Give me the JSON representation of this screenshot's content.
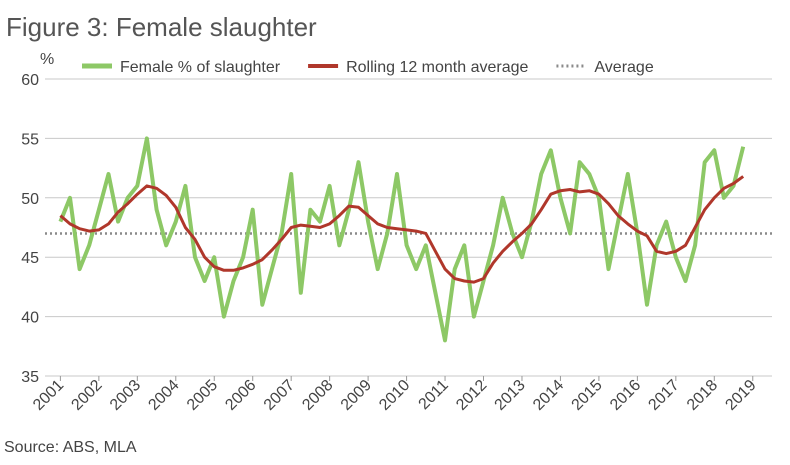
{
  "chart_data": {
    "type": "line",
    "title": "Figure 3: Female slaughter",
    "y_axis_label": "%",
    "source": "Source: ABS, MLA",
    "xlim": [
      2000.6,
      2019.5
    ],
    "ylim": [
      35,
      60
    ],
    "xticks": [
      2001,
      2002,
      2003,
      2004,
      2005,
      2006,
      2007,
      2008,
      2009,
      2010,
      2011,
      2012,
      2013,
      2014,
      2015,
      2016,
      2017,
      2018,
      2019
    ],
    "yticks": [
      35,
      40,
      45,
      50,
      55,
      60
    ],
    "grid": true,
    "legend": "top",
    "x": [
      2001,
      2001.25,
      2001.5,
      2001.75,
      2002,
      2002.25,
      2002.5,
      2002.75,
      2003,
      2003.25,
      2003.5,
      2003.75,
      2004,
      2004.25,
      2004.5,
      2004.75,
      2005,
      2005.25,
      2005.5,
      2005.75,
      2006,
      2006.25,
      2006.5,
      2006.75,
      2007,
      2007.25,
      2007.5,
      2007.75,
      2008,
      2008.25,
      2008.5,
      2008.75,
      2009,
      2009.25,
      2009.5,
      2009.75,
      2010,
      2010.25,
      2010.5,
      2010.75,
      2011,
      2011.25,
      2011.5,
      2011.75,
      2012,
      2012.25,
      2012.5,
      2012.75,
      2013,
      2013.25,
      2013.5,
      2013.75,
      2014,
      2014.25,
      2014.5,
      2014.75,
      2015,
      2015.25,
      2015.5,
      2015.75,
      2016,
      2016.25,
      2016.5,
      2016.75,
      2017,
      2017.25,
      2017.5,
      2017.75,
      2018,
      2018.25,
      2018.5,
      2018.75
    ],
    "series": [
      {
        "name": "Female % of slaughter",
        "color": "#8dc866",
        "width": 4,
        "values": [
          48,
          50,
          44,
          46,
          49,
          52,
          48,
          50,
          51,
          55,
          49,
          46,
          48,
          51,
          45,
          43,
          45,
          40,
          43,
          45,
          49,
          41,
          44,
          47,
          52,
          42,
          49,
          48,
          51,
          46,
          49,
          53,
          48,
          44,
          47,
          52,
          46,
          44,
          46,
          42,
          38,
          44,
          46,
          40,
          43,
          46,
          50,
          47,
          45,
          48,
          52,
          54,
          50,
          47,
          53,
          52,
          50,
          44,
          48,
          52,
          47,
          41,
          46,
          48,
          45,
          43,
          46,
          53,
          54,
          50,
          51,
          54.3
        ]
      },
      {
        "name": "Rolling 12 month average",
        "color": "#b0372b",
        "width": 3,
        "values": [
          48.5,
          47.8,
          47.4,
          47.2,
          47.3,
          47.8,
          48.8,
          49.5,
          50.3,
          51,
          50.8,
          50.2,
          49.2,
          47.5,
          46.5,
          45,
          44.2,
          43.9,
          43.9,
          44.1,
          44.4,
          44.8,
          45.6,
          46.5,
          47.5,
          47.7,
          47.6,
          47.5,
          47.8,
          48.5,
          49.3,
          49.2,
          48.5,
          47.8,
          47.5,
          47.4,
          47.3,
          47.2,
          47,
          45.5,
          44,
          43.2,
          43,
          42.9,
          43.2,
          44.5,
          45.5,
          46.3,
          47,
          47.8,
          49,
          50.3,
          50.6,
          50.7,
          50.5,
          50.6,
          50.3,
          49.5,
          48.5,
          47.8,
          47.2,
          46.8,
          45.5,
          45.3,
          45.5,
          46,
          47.5,
          49,
          50,
          50.8,
          51.2,
          51.8
        ]
      }
    ],
    "reference_line": {
      "name": "Average",
      "value": 47,
      "color": "#8a8a8a"
    }
  }
}
